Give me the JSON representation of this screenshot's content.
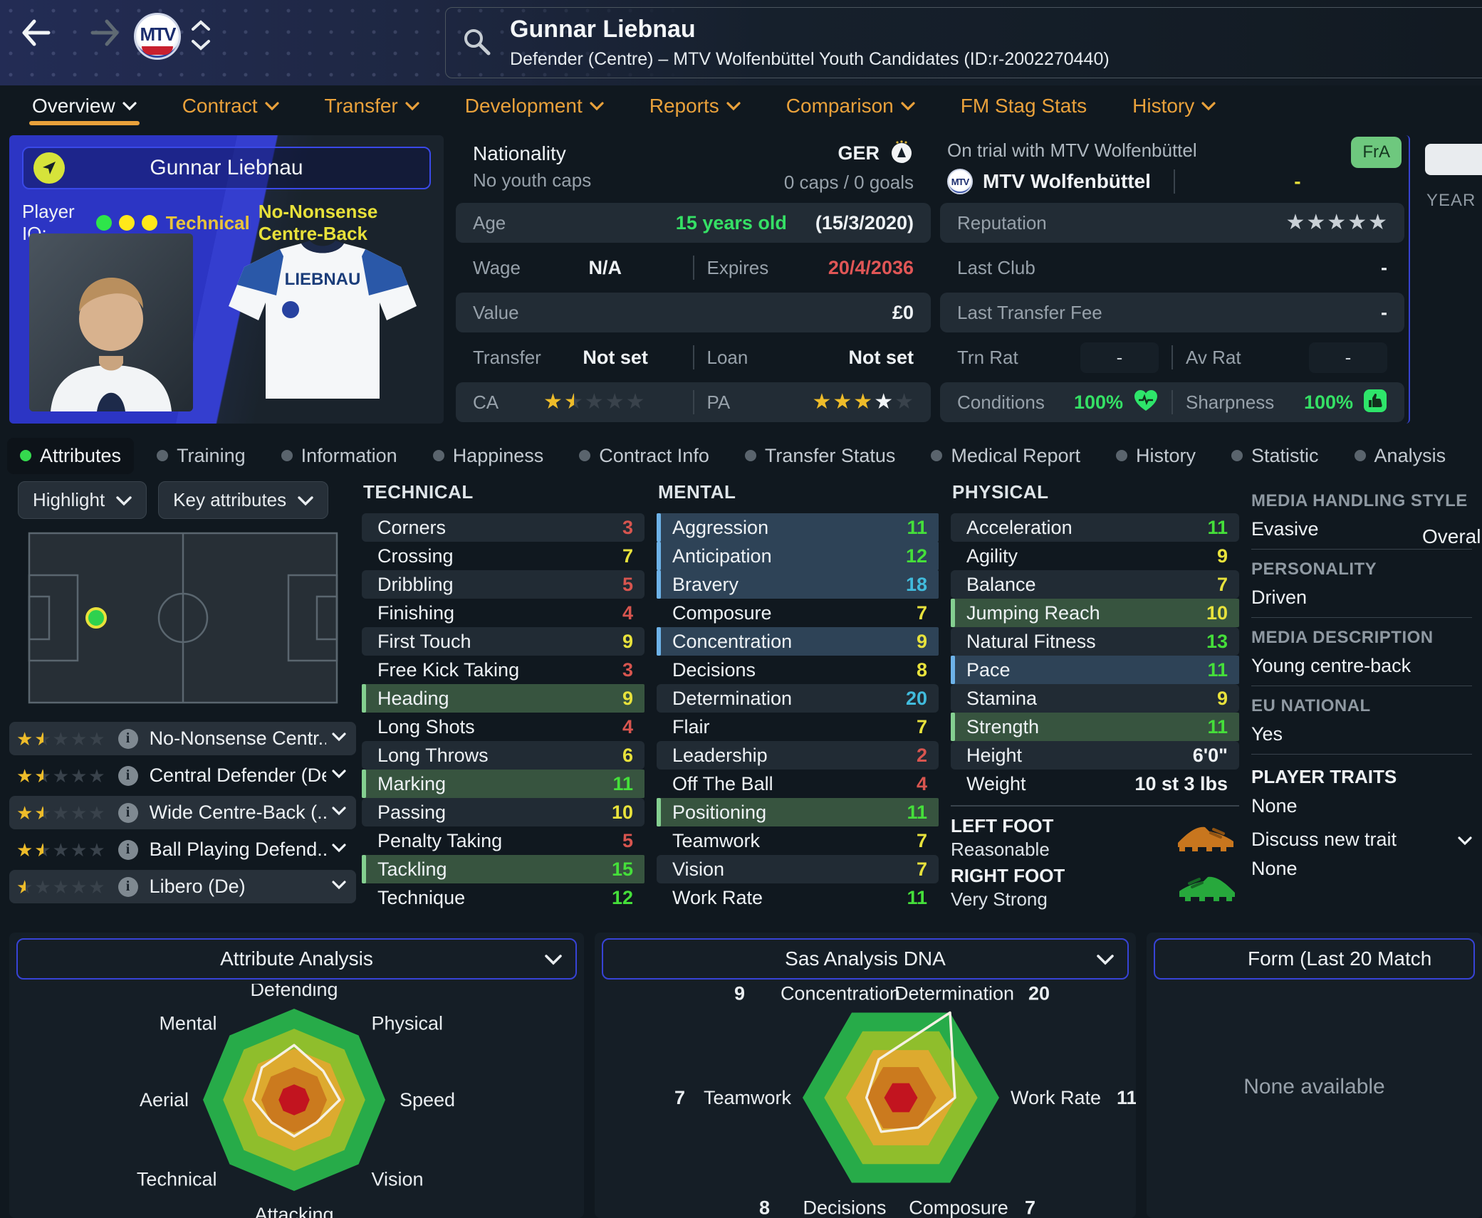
{
  "header": {
    "player_name": "Gunnar Liebnau",
    "player_subtitle": "Defender (Centre) – MTV Wolfenbüttel Youth Candidates (ID:r-2002270440)",
    "club_badge_text": "MTV",
    "tabs": [
      {
        "label": "Overview",
        "active": true,
        "chevron": true
      },
      {
        "label": "Contract",
        "active": false,
        "chevron": true
      },
      {
        "label": "Transfer",
        "active": false,
        "chevron": true
      },
      {
        "label": "Development",
        "active": false,
        "chevron": true
      },
      {
        "label": "Reports",
        "active": false,
        "chevron": true
      },
      {
        "label": "Comparison",
        "active": false,
        "chevron": true
      },
      {
        "label": "FM Stag Stats",
        "active": false,
        "chevron": false
      },
      {
        "label": "History",
        "active": false,
        "chevron": true
      }
    ]
  },
  "profile": {
    "name_plate": "Gunnar Liebnau",
    "player_iq_label": "Player IQ:",
    "iq_dots": [
      "#2ee54a",
      "#ffe81a",
      "#ffe81a"
    ],
    "iq_role_type": "Technical",
    "iq_role_name": "No-Nonsense Centre-Back",
    "shirt_name": "LIEBNAU"
  },
  "details": {
    "nationality_label": "Nationality",
    "nationality_sub": "No youth caps",
    "nation_code": "GER",
    "caps": "0 caps / 0 goals",
    "age_label": "Age",
    "age_value": "15 years old",
    "birth_date": "(15/3/2020)",
    "wage_label": "Wage",
    "wage_value": "N/A",
    "expires_label": "Expires",
    "expires_value": "20/4/2036",
    "value_label": "Value",
    "value_value": "£0",
    "transfer_label": "Transfer",
    "transfer_value": "Not set",
    "loan_label": "Loan",
    "loan_value": "Not set",
    "ca_label": "CA",
    "ca_stars": [
      "full",
      "half",
      "empty",
      "empty",
      "empty"
    ],
    "pa_label": "PA",
    "pa_stars": [
      "full",
      "full",
      "full",
      "white",
      "empty"
    ]
  },
  "trial": {
    "heading": "On trial with MTV Wolfenbüttel",
    "club": "MTV Wolfenbüttel",
    "club_dash": "-",
    "flag_badge": "FrA",
    "reputation_label": "Reputation",
    "reputation_stars": [
      "silver",
      "silver",
      "silver",
      "silver",
      "silver"
    ],
    "last_club_label": "Last Club",
    "last_club_value": "-",
    "last_fee_label": "Last Transfer Fee",
    "last_fee_value": "-",
    "trn_rat_label": "Trn Rat",
    "trn_rat_value": "-",
    "av_rat_label": "Av Rat",
    "av_rat_value": "-",
    "conditions_label": "Conditions",
    "conditions_value": "100%",
    "sharpness_label": "Sharpness",
    "sharpness_value": "100%"
  },
  "side_strip": {
    "year_label": "YEAR",
    "overall_label": "Overall"
  },
  "subnav": [
    {
      "label": "Attributes",
      "active": true
    },
    {
      "label": "Training",
      "active": false
    },
    {
      "label": "Information",
      "active": false
    },
    {
      "label": "Happiness",
      "active": false
    },
    {
      "label": "Contract Info",
      "active": false
    },
    {
      "label": "Transfer Status",
      "active": false
    },
    {
      "label": "Medical Report",
      "active": false
    },
    {
      "label": "History",
      "active": false
    },
    {
      "label": "Statistic",
      "active": false
    },
    {
      "label": "Analysis",
      "active": false
    }
  ],
  "attributes_panel": {
    "highlight_label": "Highlight",
    "key_attributes_label": "Key attributes",
    "roles": [
      {
        "stars": [
          "full",
          "half",
          "empty",
          "empty",
          "empty"
        ],
        "name": "No-Nonsense Centr..."
      },
      {
        "stars": [
          "full",
          "half",
          "empty",
          "empty",
          "empty"
        ],
        "name": "Central Defender (De)"
      },
      {
        "stars": [
          "full",
          "half",
          "empty",
          "empty",
          "empty"
        ],
        "name": "Wide Centre-Back (..."
      },
      {
        "stars": [
          "full",
          "half",
          "empty",
          "empty",
          "empty"
        ],
        "name": "Ball Playing Defend..."
      },
      {
        "stars": [
          "half",
          "empty",
          "empty",
          "empty",
          "empty"
        ],
        "name": "Libero (De)"
      }
    ],
    "technical": {
      "title": "TECHNICAL",
      "rows": [
        {
          "n": "Corners",
          "v": 3,
          "hl": ""
        },
        {
          "n": "Crossing",
          "v": 7,
          "hl": ""
        },
        {
          "n": "Dribbling",
          "v": 5,
          "hl": ""
        },
        {
          "n": "Finishing",
          "v": 4,
          "hl": ""
        },
        {
          "n": "First Touch",
          "v": 9,
          "hl": ""
        },
        {
          "n": "Free Kick Taking",
          "v": 3,
          "hl": ""
        },
        {
          "n": "Heading",
          "v": 9,
          "hl": "g"
        },
        {
          "n": "Long Shots",
          "v": 4,
          "hl": ""
        },
        {
          "n": "Long Throws",
          "v": 6,
          "hl": ""
        },
        {
          "n": "Marking",
          "v": 11,
          "hl": "g"
        },
        {
          "n": "Passing",
          "v": 10,
          "hl": ""
        },
        {
          "n": "Penalty Taking",
          "v": 5,
          "hl": ""
        },
        {
          "n": "Tackling",
          "v": 15,
          "hl": "g"
        },
        {
          "n": "Technique",
          "v": 12,
          "hl": ""
        }
      ]
    },
    "mental": {
      "title": "MENTAL",
      "rows": [
        {
          "n": "Aggression",
          "v": 11,
          "hl": "b"
        },
        {
          "n": "Anticipation",
          "v": 12,
          "hl": "b"
        },
        {
          "n": "Bravery",
          "v": 18,
          "hl": "b"
        },
        {
          "n": "Composure",
          "v": 7,
          "hl": ""
        },
        {
          "n": "Concentration",
          "v": 9,
          "hl": "b"
        },
        {
          "n": "Decisions",
          "v": 8,
          "hl": ""
        },
        {
          "n": "Determination",
          "v": 20,
          "hl": ""
        },
        {
          "n": "Flair",
          "v": 7,
          "hl": ""
        },
        {
          "n": "Leadership",
          "v": 2,
          "hl": ""
        },
        {
          "n": "Off The Ball",
          "v": 4,
          "hl": ""
        },
        {
          "n": "Positioning",
          "v": 11,
          "hl": "g"
        },
        {
          "n": "Teamwork",
          "v": 7,
          "hl": ""
        },
        {
          "n": "Vision",
          "v": 7,
          "hl": ""
        },
        {
          "n": "Work Rate",
          "v": 11,
          "hl": ""
        }
      ]
    },
    "physical": {
      "title": "PHYSICAL",
      "rows": [
        {
          "n": "Acceleration",
          "v": 11,
          "hl": ""
        },
        {
          "n": "Agility",
          "v": 9,
          "hl": ""
        },
        {
          "n": "Balance",
          "v": 7,
          "hl": ""
        },
        {
          "n": "Jumping Reach",
          "v": 10,
          "hl": "g"
        },
        {
          "n": "Natural Fitness",
          "v": 13,
          "hl": ""
        },
        {
          "n": "Pace",
          "v": 11,
          "hl": "b"
        },
        {
          "n": "Stamina",
          "v": 9,
          "hl": ""
        },
        {
          "n": "Strength",
          "v": 11,
          "hl": "g"
        }
      ]
    },
    "physical_extra": [
      {
        "n": "Height",
        "v": "6'0\""
      },
      {
        "n": "Weight",
        "v": "10 st 3 lbs"
      }
    ],
    "feet": {
      "left_label": "LEFT FOOT",
      "left_value": "Reasonable",
      "right_label": "RIGHT FOOT",
      "right_value": "Very Strong",
      "left_boot_color": "#c8761e",
      "right_boot_color": "#27a83c"
    },
    "info_col": [
      {
        "h": "MEDIA HANDLING STYLE",
        "v": "Evasive"
      },
      {
        "h": "PERSONALITY",
        "v": "Driven"
      },
      {
        "h": "MEDIA DESCRIPTION",
        "v": "Young centre-back"
      },
      {
        "h": "EU NATIONAL",
        "v": "Yes"
      }
    ],
    "traits": {
      "heading": "PLAYER TRAITS",
      "value": "None",
      "discuss_label": "Discuss new trait",
      "below": "None"
    }
  },
  "value_colors": {
    "low": "#d8554f",
    "mid": "#e8e23c",
    "good": "#45df3a",
    "elite": "#41bbdc"
  },
  "chart_data": [
    {
      "type": "radar",
      "title": "Attribute Analysis",
      "categories": [
        "Defending",
        "Physical",
        "Speed",
        "Vision",
        "Attacking",
        "Technical",
        "Aerial",
        "Mental"
      ],
      "values": [
        12,
        9,
        10,
        7,
        8,
        7,
        9,
        10
      ],
      "ylim": [
        0,
        20
      ],
      "ring_fractions": [
        1,
        0.78,
        0.56,
        0.36,
        0.17
      ],
      "ring_colors": [
        "#27ab49",
        "#8fbe2c",
        "#ddaa2f",
        "#cb7a1e",
        "#c2141f"
      ],
      "line_color": "#f6f1e3",
      "legend_position": "none",
      "grid": false
    },
    {
      "type": "radar",
      "title": "Sas Analysis DNA",
      "categories": [
        "Determination",
        "Work Rate",
        "Composure",
        "Decisions",
        "Teamwork",
        "Concentration"
      ],
      "values": [
        20,
        11,
        7,
        8,
        7,
        9
      ],
      "show_values": true,
      "ylim": [
        0,
        20
      ],
      "ring_fractions": [
        1,
        0.78,
        0.56,
        0.36,
        0.17
      ],
      "ring_colors": [
        "#27ab49",
        "#8fbe2c",
        "#ddaa2f",
        "#cb7a1e",
        "#c2141f"
      ],
      "line_color": "#f6f1e3",
      "legend_position": "none",
      "grid": false
    },
    {
      "type": "panel",
      "title": "Form (Last 20 Match",
      "empty_text": "None available"
    }
  ]
}
